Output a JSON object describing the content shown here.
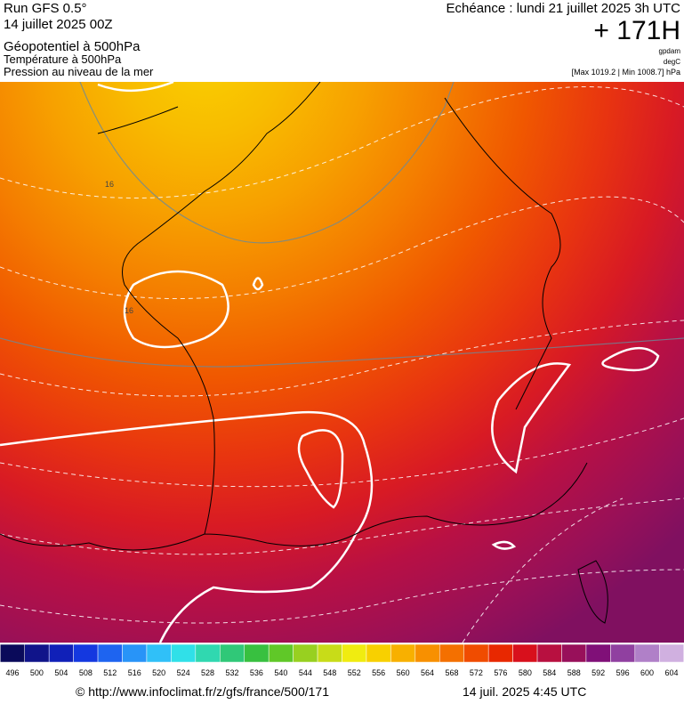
{
  "header": {
    "left": [
      "Run GFS 0.5°",
      "14 juillet 2025 00Z",
      "Géopotentiel à 500hPa",
      "Température à 500hPa",
      "Pression au niveau de la mer"
    ],
    "echeance": "Echéance : lundi 21 juillet 2025 3h UTC",
    "run_hour": "+ 171H",
    "units": [
      "gpdam",
      "degC",
      "[Max 1019.2 | Min 1008.7] hPa"
    ]
  },
  "map": {
    "contour_labels": [
      "16",
      "16"
    ]
  },
  "colorbar": {
    "labels": [
      "496",
      "500",
      "504",
      "508",
      "512",
      "516",
      "520",
      "524",
      "528",
      "532",
      "536",
      "540",
      "544",
      "548",
      "552",
      "556",
      "560",
      "564",
      "568",
      "572",
      "576",
      "580",
      "584",
      "588",
      "592",
      "596",
      "600",
      "604"
    ],
    "colors": [
      "#0a0a5a",
      "#10148a",
      "#1020b8",
      "#1438e0",
      "#1e64f0",
      "#2894f8",
      "#30c0f8",
      "#30e0e8",
      "#30d8b0",
      "#30c878",
      "#38c040",
      "#60c828",
      "#98d020",
      "#c8dc18",
      "#f0ec10",
      "#f8d000",
      "#f8b000",
      "#f89000",
      "#f47000",
      "#f04c00",
      "#e82800",
      "#d8101c",
      "#b81040",
      "#98105a",
      "#801078",
      "#9040a0",
      "#b080c8",
      "#d0b0e0"
    ]
  },
  "footer": {
    "url": "© http://www.infoclimat.fr/z/gfs/france/500/171",
    "time": "14 juil. 2025  4:45 UTC"
  }
}
